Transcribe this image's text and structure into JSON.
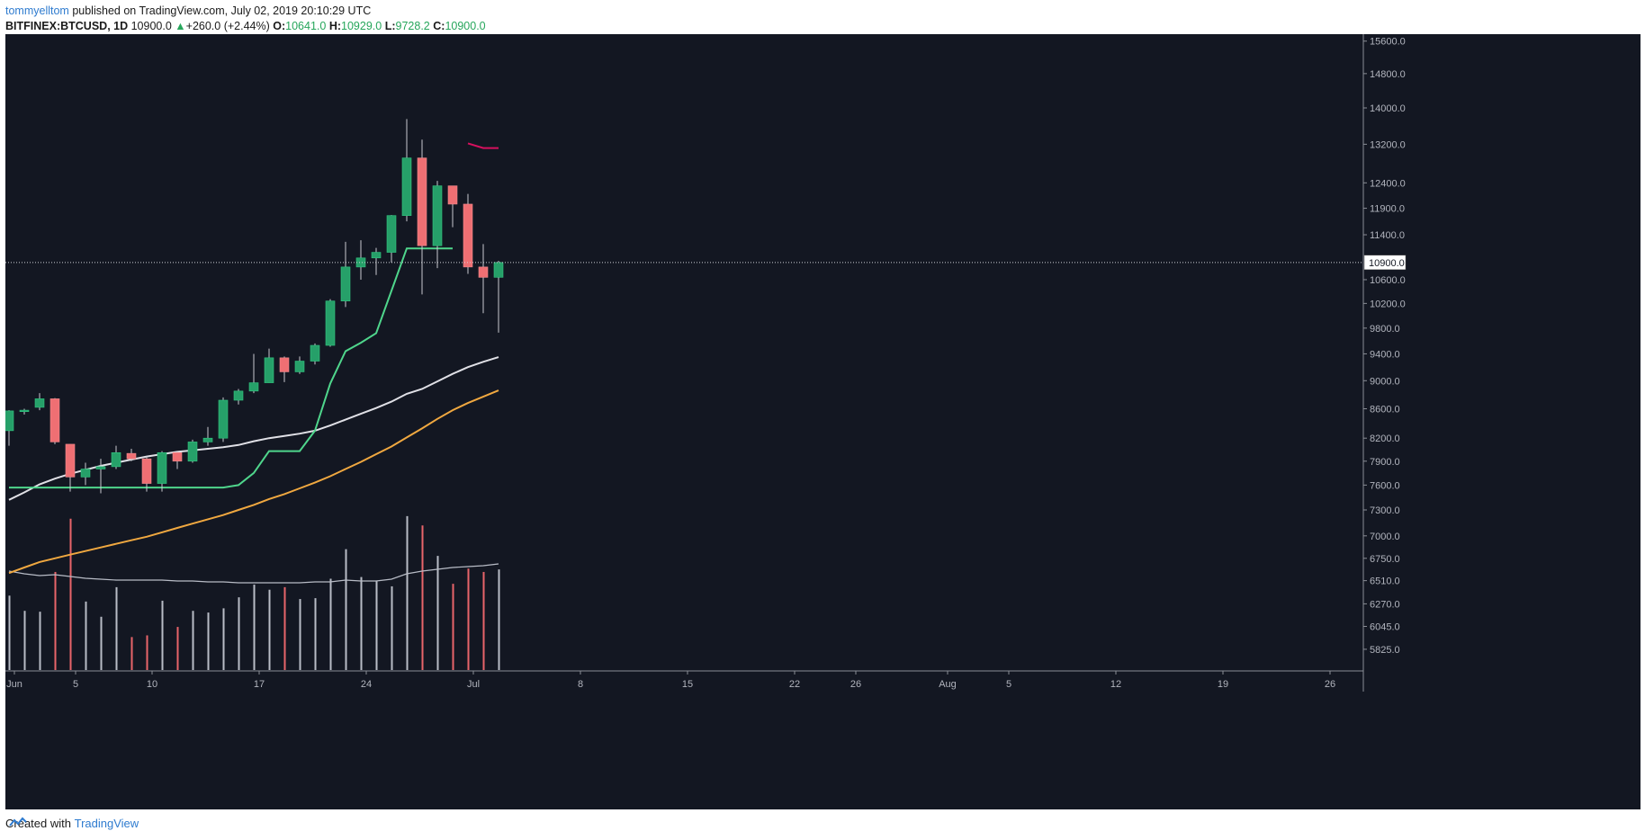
{
  "header": {
    "author": "tommyelltom",
    "published_text": "published on TradingView.com, July 02, 2019 20:10:29 UTC"
  },
  "quote": {
    "symbol": "BITFINEX:BTCUSD, 1D",
    "price": "10900.0",
    "arrow": "▲",
    "change": "+260.0 (+2.44%)",
    "o_label": "O:",
    "o_value": "10641.0",
    "h_label": "H:",
    "h_value": "10929.0",
    "l_label": "L:",
    "l_value": "9728.2",
    "c_label": "C:",
    "c_value": "10900.0"
  },
  "footer": {
    "created_with": "Created with",
    "brand": "TradingView"
  },
  "colors": {
    "background": "#131722",
    "up": "#26a069",
    "down": "#ef6f73",
    "sma_white": "#e0e0e6",
    "sma_orange": "#f0a840",
    "green_line": "#4fd68c",
    "red_line": "#d6105e",
    "volume_white": "#b8bcc6",
    "volume_red": "#e8646a"
  },
  "chart_data": {
    "type": "candlestick",
    "symbol": "BITFINEX:BTCUSD",
    "interval": "1D",
    "last_price": "10900.0",
    "price_axis": {
      "scale": "log",
      "ticks": [
        "15600.0",
        "14800.0",
        "14000.0",
        "13200.0",
        "12400.0",
        "11900.0",
        "11400.0",
        "10900.0",
        "10600.0",
        "10200.0",
        "9800.0",
        "9400.0",
        "9000.0",
        "8600.0",
        "8200.0",
        "7900.0",
        "7600.0",
        "7300.0",
        "7000.0",
        "6750.0",
        "6510.0",
        "6270.0",
        "6045.0",
        "5825.0"
      ]
    },
    "time_axis": {
      "ticks": [
        {
          "label": "Jun",
          "day": 0
        },
        {
          "label": "5",
          "day": 4
        },
        {
          "label": "10",
          "day": 9
        },
        {
          "label": "17",
          "day": 16
        },
        {
          "label": "24",
          "day": 23
        },
        {
          "label": "Jul",
          "day": 30
        },
        {
          "label": "8",
          "day": 37
        },
        {
          "label": "15",
          "day": 44
        },
        {
          "label": "22",
          "day": 51
        },
        {
          "label": "26",
          "day": 55
        },
        {
          "label": "Aug",
          "day": 61
        },
        {
          "label": "5",
          "day": 65
        },
        {
          "label": "12",
          "day": 72
        },
        {
          "label": "19",
          "day": 79
        },
        {
          "label": "26",
          "day": 86
        }
      ]
    },
    "candles": [
      {
        "o": 8300,
        "h": 8580,
        "l": 8100,
        "c": 8570
      },
      {
        "o": 8560,
        "h": 8600,
        "l": 8520,
        "c": 8580
      },
      {
        "o": 8620,
        "h": 8820,
        "l": 8580,
        "c": 8740
      },
      {
        "o": 8740,
        "h": 8750,
        "l": 8120,
        "c": 8150
      },
      {
        "o": 8120,
        "h": 8120,
        "l": 7520,
        "c": 7700
      },
      {
        "o": 7700,
        "h": 7880,
        "l": 7600,
        "c": 7800
      },
      {
        "o": 7800,
        "h": 7930,
        "l": 7500,
        "c": 7830
      },
      {
        "o": 7830,
        "h": 8100,
        "l": 7800,
        "c": 8010
      },
      {
        "o": 8000,
        "h": 8060,
        "l": 7900,
        "c": 7930
      },
      {
        "o": 7930,
        "h": 7960,
        "l": 7520,
        "c": 7620
      },
      {
        "o": 7620,
        "h": 8030,
        "l": 7520,
        "c": 8010
      },
      {
        "o": 8010,
        "h": 8020,
        "l": 7800,
        "c": 7900
      },
      {
        "o": 7900,
        "h": 8180,
        "l": 7880,
        "c": 8150
      },
      {
        "o": 8150,
        "h": 8350,
        "l": 8100,
        "c": 8200
      },
      {
        "o": 8200,
        "h": 8760,
        "l": 8150,
        "c": 8720
      },
      {
        "o": 8720,
        "h": 8880,
        "l": 8660,
        "c": 8850
      },
      {
        "o": 8850,
        "h": 9400,
        "l": 8820,
        "c": 8970
      },
      {
        "o": 8970,
        "h": 9480,
        "l": 8970,
        "c": 9340
      },
      {
        "o": 9340,
        "h": 9360,
        "l": 8980,
        "c": 9130
      },
      {
        "o": 9130,
        "h": 9360,
        "l": 9100,
        "c": 9290
      },
      {
        "o": 9290,
        "h": 9560,
        "l": 9240,
        "c": 9530
      },
      {
        "o": 9530,
        "h": 10270,
        "l": 9510,
        "c": 10240
      },
      {
        "o": 10240,
        "h": 11270,
        "l": 10140,
        "c": 10820
      },
      {
        "o": 10820,
        "h": 11300,
        "l": 10600,
        "c": 10980
      },
      {
        "o": 10980,
        "h": 11160,
        "l": 10680,
        "c": 11080
      },
      {
        "o": 11080,
        "h": 11770,
        "l": 10900,
        "c": 11760
      },
      {
        "o": 11760,
        "h": 13750,
        "l": 11650,
        "c": 12910
      },
      {
        "o": 12910,
        "h": 13300,
        "l": 10350,
        "c": 11200
      },
      {
        "o": 11200,
        "h": 12440,
        "l": 10800,
        "c": 12340
      },
      {
        "o": 12340,
        "h": 12330,
        "l": 11540,
        "c": 11980
      },
      {
        "o": 11980,
        "h": 12180,
        "l": 10700,
        "c": 10820
      },
      {
        "o": 10820,
        "h": 11230,
        "l": 10040,
        "c": 10640
      },
      {
        "o": 10641,
        "h": 10929,
        "l": 9728.2,
        "c": 10900
      }
    ],
    "sma_white": [
      7420,
      7510,
      7610,
      7680,
      7740,
      7790,
      7840,
      7880,
      7920,
      7960,
      7990,
      8020,
      8040,
      8060,
      8080,
      8110,
      8160,
      8200,
      8230,
      8260,
      8300,
      8370,
      8450,
      8530,
      8610,
      8700,
      8810,
      8880,
      8990,
      9100,
      9200,
      9280,
      9350
    ],
    "sma_orange": [
      6590,
      6650,
      6710,
      6750,
      6790,
      6830,
      6870,
      6910,
      6950,
      6990,
      7040,
      7090,
      7140,
      7190,
      7240,
      7300,
      7360,
      7430,
      7490,
      7560,
      7630,
      7710,
      7800,
      7890,
      7990,
      8090,
      8210,
      8330,
      8460,
      8580,
      8680,
      8770,
      8860
    ],
    "green_line": [
      7570,
      7570,
      7570,
      7570,
      7570,
      7570,
      7570,
      7570,
      7570,
      7570,
      7570,
      7570,
      7570,
      7570,
      7570,
      7600,
      7750,
      8030,
      8030,
      8030,
      8300,
      8960,
      9440,
      9570,
      9720,
      10410,
      11150,
      11150,
      11150,
      11150
    ],
    "red_line_start_index": 30,
    "red_line": [
      13220,
      13120,
      13120
    ],
    "volume": {
      "direction": [
        "up",
        "up",
        "up",
        "down",
        "down",
        "up",
        "up",
        "up",
        "down",
        "down",
        "up",
        "down",
        "up",
        "up",
        "up",
        "up",
        "up",
        "up",
        "down",
        "up",
        "up",
        "up",
        "up",
        "up",
        "up",
        "up",
        "up",
        "down",
        "up",
        "down",
        "down",
        "down",
        "up"
      ],
      "values": [
        88,
        70,
        69,
        116,
        179,
        81,
        63,
        98,
        39,
        41,
        82,
        51,
        70,
        68,
        73,
        86,
        101,
        95,
        98,
        84,
        85,
        108,
        143,
        110,
        105,
        99,
        182,
        171,
        135,
        102,
        120,
        116,
        119
      ],
      "moving_average": [
        110,
        107,
        105,
        106,
        104,
        102,
        101,
        100,
        100,
        100,
        100,
        99,
        99,
        98,
        98,
        97,
        97,
        97,
        97,
        97,
        98,
        98,
        100,
        99,
        99,
        101,
        107,
        110,
        112,
        114,
        115,
        116,
        118
      ]
    }
  }
}
